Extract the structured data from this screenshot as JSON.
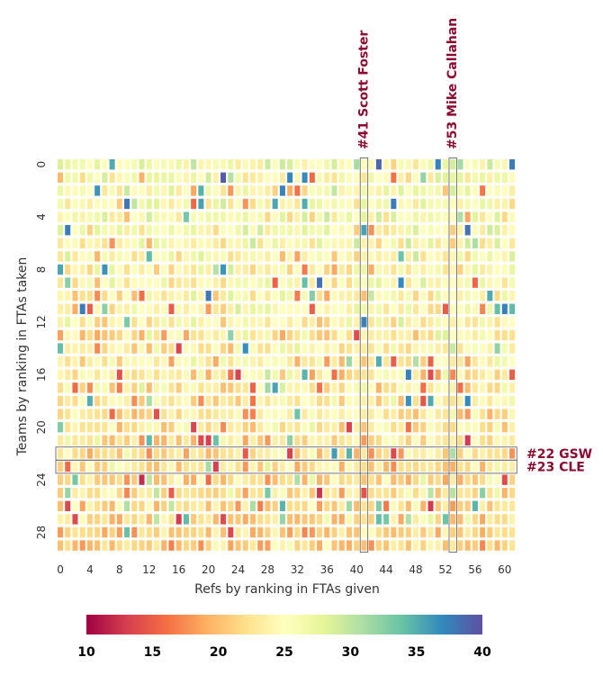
{
  "chart_data": {
    "type": "heatmap",
    "xlabel": "Refs by ranking in FTAs given",
    "ylabel": "Teams by ranking in FTAs taken",
    "n_cols": 62,
    "n_rows": 30,
    "x_ticks": [
      0,
      4,
      8,
      12,
      16,
      20,
      24,
      28,
      32,
      36,
      40,
      44,
      48,
      52,
      56,
      60
    ],
    "y_ticks": [
      0,
      4,
      8,
      12,
      16,
      20,
      24,
      28
    ],
    "colorbar": {
      "min": 10,
      "max": 40,
      "ticks": [
        10,
        15,
        20,
        25,
        30,
        35,
        40
      ],
      "colormap": "Spectral",
      "colors": [
        "#9e0142",
        "#d53e4f",
        "#f46d43",
        "#fdae61",
        "#fee08b",
        "#ffffbf",
        "#e6f598",
        "#abdda4",
        "#66c2a5",
        "#3288bd",
        "#5e4fa2"
      ]
    },
    "annotations": {
      "columns": [
        {
          "index": 41,
          "label": "#41 Scott Foster"
        },
        {
          "index": 53,
          "label": "#53 Mike Callahan"
        }
      ],
      "rows": [
        {
          "index": 22,
          "label": "#22 GSW"
        },
        {
          "index": 23,
          "label": "#23 CLE"
        }
      ]
    },
    "annotation_color": "#8b0a2e",
    "grid": false
  }
}
